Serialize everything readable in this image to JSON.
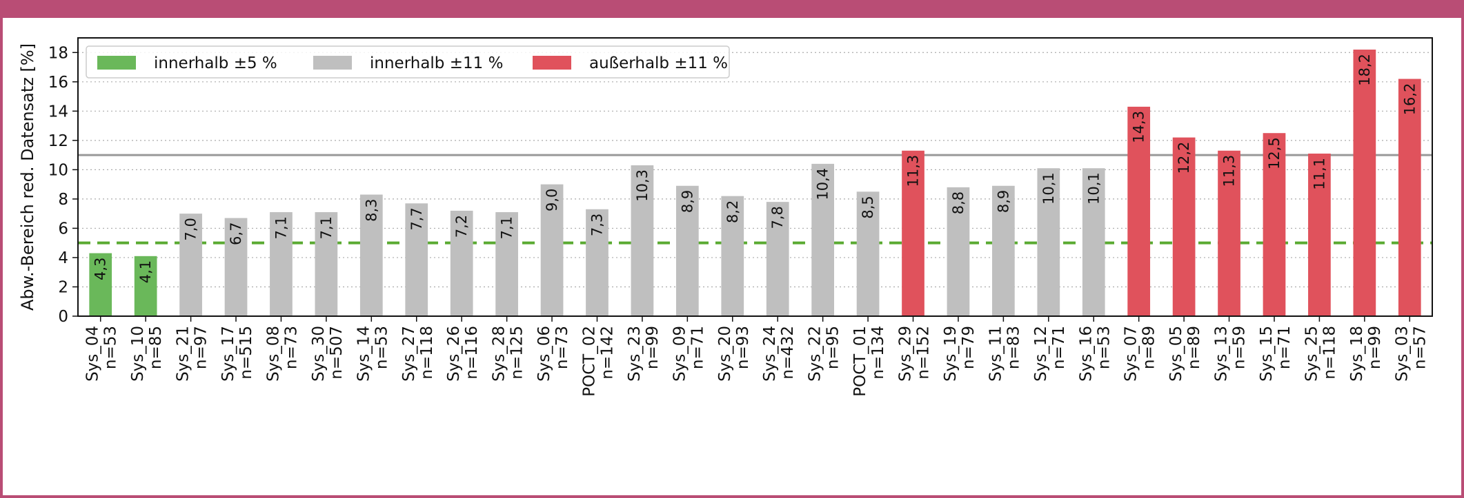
{
  "chart_data": {
    "type": "bar",
    "title": "",
    "xlabel": "",
    "ylabel": "Abw.-Bereich red. Datensatz [%]",
    "ylim": [
      0,
      19
    ],
    "yticks": [
      0,
      2,
      4,
      6,
      8,
      10,
      12,
      14,
      16,
      18
    ],
    "grid": "horizontal dotted",
    "legend_position": "top-left",
    "legend": [
      {
        "name": "innerhalb ±5 %",
        "color": "#6ab85a"
      },
      {
        "name": "innerhalb ±11 %",
        "color": "#bfbfbf"
      },
      {
        "name": "außerhalb ±11 %",
        "color": "#e0525c"
      }
    ],
    "reference_lines": [
      {
        "y": 11,
        "style": "solid",
        "color": "#999999"
      },
      {
        "y": 5,
        "style": "dashed",
        "color": "#5aaa32"
      }
    ],
    "categories": [
      "Sys_04 n=53",
      "Sys_10 n=85",
      "Sys_21 n=97",
      "Sys_17 n=515",
      "Sys_08 n=73",
      "Sys_30 n=507",
      "Sys_14 n=53",
      "Sys_27 n=118",
      "Sys_26 n=116",
      "Sys_28 n=125",
      "Sys_06 n=73",
      "POCT_02 n=142",
      "Sys_23 n=99",
      "Sys_09 n=71",
      "Sys_20 n=93",
      "Sys_24 n=432",
      "Sys_22 n=95",
      "POCT_01 n=134",
      "Sys_29 n=152",
      "Sys_19 n=79",
      "Sys_11 n=83",
      "Sys_12 n=71",
      "Sys_16 n=53",
      "Sys_07 n=89",
      "Sys_05 n=89",
      "Sys_13 n=59",
      "Sys_15 n=71",
      "Sys_25 n=118",
      "Sys_18 n=99",
      "Sys_03 n=57"
    ],
    "values": [
      4.3,
      4.1,
      7.0,
      6.7,
      7.1,
      7.1,
      8.3,
      7.7,
      7.2,
      7.1,
      9.0,
      7.3,
      10.3,
      8.9,
      8.2,
      7.8,
      10.4,
      8.5,
      11.3,
      8.8,
      8.9,
      10.1,
      10.1,
      14.3,
      12.2,
      11.3,
      12.5,
      11.1,
      18.2,
      16.2
    ],
    "labels": [
      "4,3",
      "4,1",
      "7,0",
      "6,7",
      "7,1",
      "7,1",
      "8,3",
      "7,7",
      "7,2",
      "7,1",
      "9,0",
      "7,3",
      "10,3",
      "8,9",
      "8,2",
      "7,8",
      "10,4",
      "8,5",
      "11,3",
      "8,8",
      "8,9",
      "10,1",
      "10,1",
      "14,3",
      "12,2",
      "11,3",
      "12,5",
      "11,1",
      "18,2",
      "16,2"
    ],
    "groups": [
      0,
      0,
      1,
      1,
      1,
      1,
      1,
      1,
      1,
      1,
      1,
      1,
      1,
      1,
      1,
      1,
      1,
      1,
      2,
      1,
      1,
      1,
      1,
      2,
      2,
      2,
      2,
      2,
      2,
      2
    ]
  }
}
